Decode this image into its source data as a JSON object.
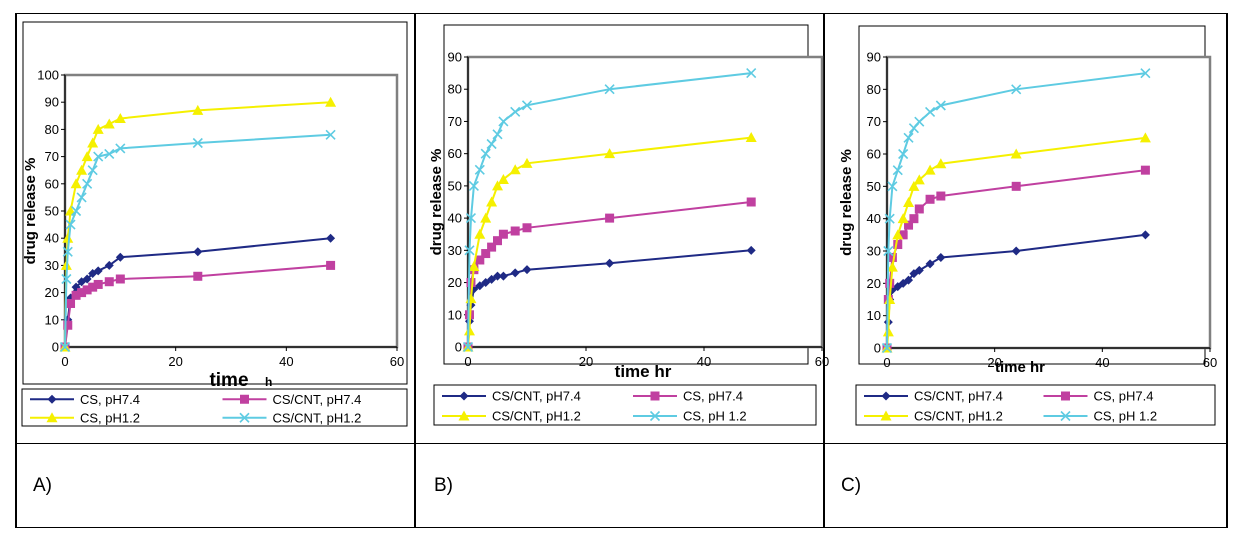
{
  "colors": {
    "navy": "#1F2A85",
    "magenta": "#C040A0",
    "yellow": "#F5F000",
    "cyan": "#5ECBE2",
    "frame": "#808080"
  },
  "panels": [
    {
      "label": "A)"
    },
    {
      "label": "B)"
    },
    {
      "label": "C)"
    }
  ],
  "chart_data": [
    {
      "type": "line",
      "xlabel": "time",
      "xlabel_unit": "h",
      "ylabel": "drug release %",
      "xlim": [
        0,
        60
      ],
      "ylim": [
        0,
        100
      ],
      "xticks": [
        "0",
        "20",
        "40",
        "60"
      ],
      "yticks": [
        "0",
        "10",
        "20",
        "30",
        "40",
        "50",
        "60",
        "70",
        "80",
        "90",
        "100"
      ],
      "grid": false,
      "legend_position": "bottom",
      "series": [
        {
          "name": "CS, pH7.4",
          "color": "#1F2A85",
          "marker": "diamond",
          "x": [
            0,
            0.5,
            1,
            2,
            3,
            4,
            5,
            6,
            8,
            10,
            24,
            48
          ],
          "y": [
            0,
            10,
            18,
            22,
            24,
            25,
            27,
            28,
            30,
            33,
            35,
            40
          ]
        },
        {
          "name": "CS/CNT, pH7.4",
          "color": "#C040A0",
          "marker": "square",
          "x": [
            0,
            0.5,
            1,
            2,
            3,
            4,
            5,
            6,
            8,
            10,
            24,
            48
          ],
          "y": [
            0,
            8,
            16,
            19,
            20,
            21,
            22,
            23,
            24,
            25,
            26,
            30
          ]
        },
        {
          "name": "CS, pH1.2",
          "color": "#F5F000",
          "marker": "triangle",
          "x": [
            0,
            0.25,
            0.5,
            1,
            2,
            3,
            4,
            5,
            6,
            8,
            10,
            24,
            48
          ],
          "y": [
            0,
            30,
            40,
            50,
            60,
            65,
            70,
            75,
            80,
            82,
            84,
            87,
            90
          ]
        },
        {
          "name": "CS/CNT, pH1.2",
          "color": "#5ECBE2",
          "marker": "x",
          "x": [
            0,
            0.25,
            0.5,
            1,
            2,
            3,
            4,
            5,
            6,
            8,
            10,
            24,
            48
          ],
          "y": [
            0,
            25,
            35,
            45,
            50,
            55,
            60,
            65,
            70,
            71,
            73,
            75,
            78
          ]
        }
      ]
    },
    {
      "type": "line",
      "xlabel": "time hr",
      "ylabel": "drug release %",
      "xlim": [
        0,
        60
      ],
      "ylim": [
        0,
        90
      ],
      "xticks": [
        "0",
        "20",
        "40",
        "60"
      ],
      "yticks": [
        "0",
        "10",
        "20",
        "30",
        "40",
        "50",
        "60",
        "70",
        "80",
        "90"
      ],
      "grid": false,
      "legend_position": "bottom",
      "series": [
        {
          "name": "CS/CNT, pH7.4",
          "color": "#1F2A85",
          "marker": "diamond",
          "x": [
            0,
            0.25,
            0.5,
            1,
            2,
            3,
            4,
            5,
            6,
            8,
            10,
            24,
            48
          ],
          "y": [
            0,
            8,
            13,
            18,
            19,
            20,
            21,
            22,
            22,
            23,
            24,
            26,
            30
          ]
        },
        {
          "name": "CS, pH7.4",
          "color": "#C040A0",
          "marker": "square",
          "x": [
            0,
            0.25,
            0.5,
            1,
            2,
            3,
            4,
            5,
            6,
            8,
            10,
            24,
            48
          ],
          "y": [
            0,
            10,
            20,
            24,
            27,
            29,
            31,
            33,
            35,
            36,
            37,
            40,
            45
          ]
        },
        {
          "name": "CS/CNT, pH1.2",
          "color": "#F5F000",
          "marker": "triangle",
          "x": [
            0,
            0.25,
            0.5,
            1,
            2,
            3,
            4,
            5,
            6,
            8,
            10,
            24,
            48
          ],
          "y": [
            0,
            5,
            15,
            25,
            35,
            40,
            45,
            50,
            52,
            55,
            57,
            60,
            65
          ]
        },
        {
          "name": "CS, pH 1.2",
          "color": "#5ECBE2",
          "marker": "x",
          "x": [
            0,
            0.25,
            0.5,
            1,
            2,
            3,
            4,
            5,
            6,
            8,
            10,
            24,
            48
          ],
          "y": [
            0,
            30,
            40,
            50,
            55,
            60,
            63,
            66,
            70,
            73,
            75,
            80,
            85
          ]
        }
      ]
    },
    {
      "type": "line",
      "xlabel": "time hr",
      "ylabel": "drug release %",
      "xlim": [
        0,
        60
      ],
      "ylim": [
        0,
        90
      ],
      "xticks": [
        "0",
        "20",
        "40",
        "60"
      ],
      "yticks": [
        "0",
        "10",
        "20",
        "30",
        "40",
        "50",
        "60",
        "70",
        "80",
        "90"
      ],
      "grid": false,
      "legend_position": "bottom",
      "series": [
        {
          "name": "CS/CNT, pH7.4",
          "color": "#1F2A85",
          "marker": "diamond",
          "x": [
            0,
            0.25,
            0.5,
            1,
            2,
            3,
            4,
            5,
            6,
            8,
            10,
            24,
            48
          ],
          "y": [
            0,
            8,
            15,
            18,
            19,
            20,
            21,
            23,
            24,
            26,
            28,
            30,
            35
          ]
        },
        {
          "name": "CS, pH7.4",
          "color": "#C040A0",
          "marker": "square",
          "x": [
            0,
            0.25,
            0.5,
            1,
            2,
            3,
            4,
            5,
            6,
            8,
            10,
            24,
            48
          ],
          "y": [
            0,
            15,
            20,
            28,
            32,
            35,
            38,
            40,
            43,
            46,
            47,
            50,
            55
          ]
        },
        {
          "name": "CS/CNT, pH1.2",
          "color": "#F5F000",
          "marker": "triangle",
          "x": [
            0,
            0.25,
            0.5,
            1,
            2,
            3,
            4,
            5,
            6,
            8,
            10,
            24,
            48
          ],
          "y": [
            0,
            5,
            15,
            25,
            35,
            40,
            45,
            50,
            52,
            55,
            57,
            60,
            65
          ]
        },
        {
          "name": "CS, pH 1.2",
          "color": "#5ECBE2",
          "marker": "x",
          "x": [
            0,
            0.25,
            0.5,
            1,
            2,
            3,
            4,
            5,
            6,
            8,
            10,
            24,
            48
          ],
          "y": [
            0,
            30,
            40,
            50,
            55,
            60,
            65,
            68,
            70,
            73,
            75,
            80,
            85
          ]
        }
      ]
    }
  ]
}
